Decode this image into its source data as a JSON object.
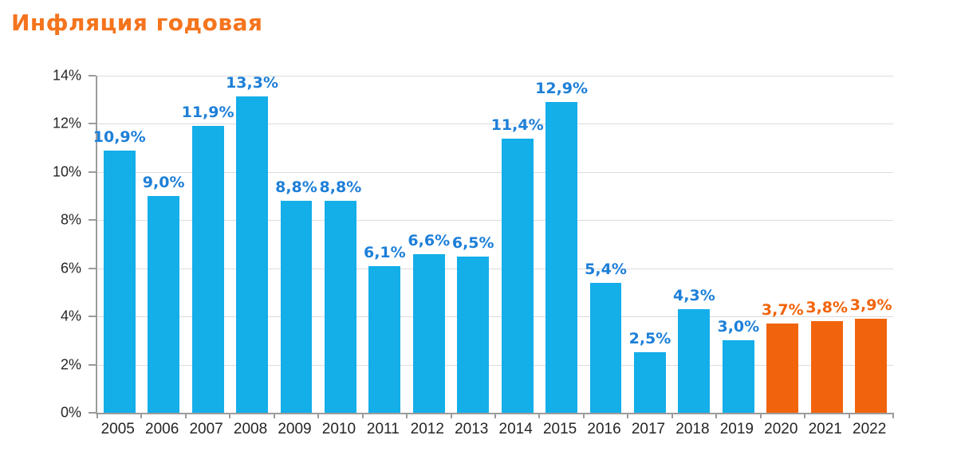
{
  "chart": {
    "title": "Инфляция годовая",
    "colors": {
      "title_orange": "#F4741D",
      "bar_blue": "#14AEE9",
      "bar_orange": "#F2640C",
      "label_blue": "#1D7FD8",
      "label_orange": "#F2640C",
      "grid": "#DCDCDC",
      "axis": "#9B9B9B",
      "tick_text": "#262626"
    }
  },
  "chart_data": {
    "type": "bar",
    "title": "Инфляция годовая",
    "categories": [
      "2005",
      "2006",
      "2007",
      "2008",
      "2009",
      "2010",
      "2011",
      "2012",
      "2013",
      "2014",
      "2015",
      "2016",
      "2017",
      "2018",
      "2019",
      "2020",
      "2021",
      "2022"
    ],
    "values": [
      10.9,
      9.0,
      11.9,
      13.3,
      8.8,
      8.8,
      6.1,
      6.6,
      6.5,
      11.4,
      12.9,
      5.4,
      2.5,
      4.3,
      3.0,
      3.7,
      3.8,
      3.9
    ],
    "value_labels": [
      "10,9%",
      "9,0%",
      "11,9%",
      "13,3%",
      "8,8%",
      "8,8%",
      "6,1%",
      "6,6%",
      "6,5%",
      "11,4%",
      "12,9%",
      "5,4%",
      "2,5%",
      "4,3%",
      "3,0%",
      "3,7%",
      "3,8%",
      "3,9%"
    ],
    "highlight_from_index": 15,
    "xlabel": "",
    "ylabel": "",
    "ylim": [
      0,
      14
    ],
    "ytick_step": 2,
    "ytick_labels": [
      "0%",
      "2%",
      "4%",
      "6%",
      "8%",
      "10%",
      "12%",
      "14%"
    ],
    "grid": true,
    "legend": false
  }
}
